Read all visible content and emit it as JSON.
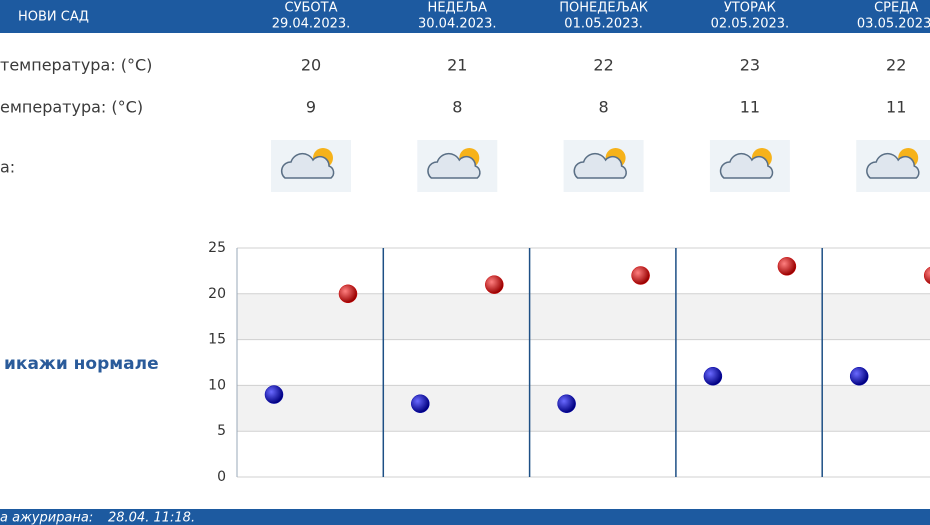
{
  "header": {
    "city": "НОВИ САД",
    "days": [
      {
        "name": "СУБОТА",
        "date": "29.04.2023."
      },
      {
        "name": "НЕДЕЉА",
        "date": "30.04.2023."
      },
      {
        "name": "ПОНЕДЕЉАК",
        "date": "01.05.2023."
      },
      {
        "name": "УТОРАК",
        "date": "02.05.2023."
      },
      {
        "name": "СРЕДА",
        "date": "03.05.2023."
      }
    ]
  },
  "rows": {
    "max_label": "температура: (°C)",
    "min_label": "емпература: (°C)",
    "icon_label": "а:"
  },
  "link": "икажи нормале",
  "footer": {
    "label": "а ажурирана:",
    "time": "28.04. 11:18."
  },
  "chart_data": {
    "type": "scatter",
    "series": [
      {
        "color": "#cc0000",
        "values": [
          20,
          21,
          22,
          23,
          22
        ]
      },
      {
        "color": "#0000aa",
        "values": [
          9,
          8,
          8,
          11,
          11
        ]
      }
    ],
    "ylim": [
      0,
      25
    ],
    "yticks": [
      0,
      5,
      10,
      15,
      20,
      25
    ],
    "grid": true
  }
}
